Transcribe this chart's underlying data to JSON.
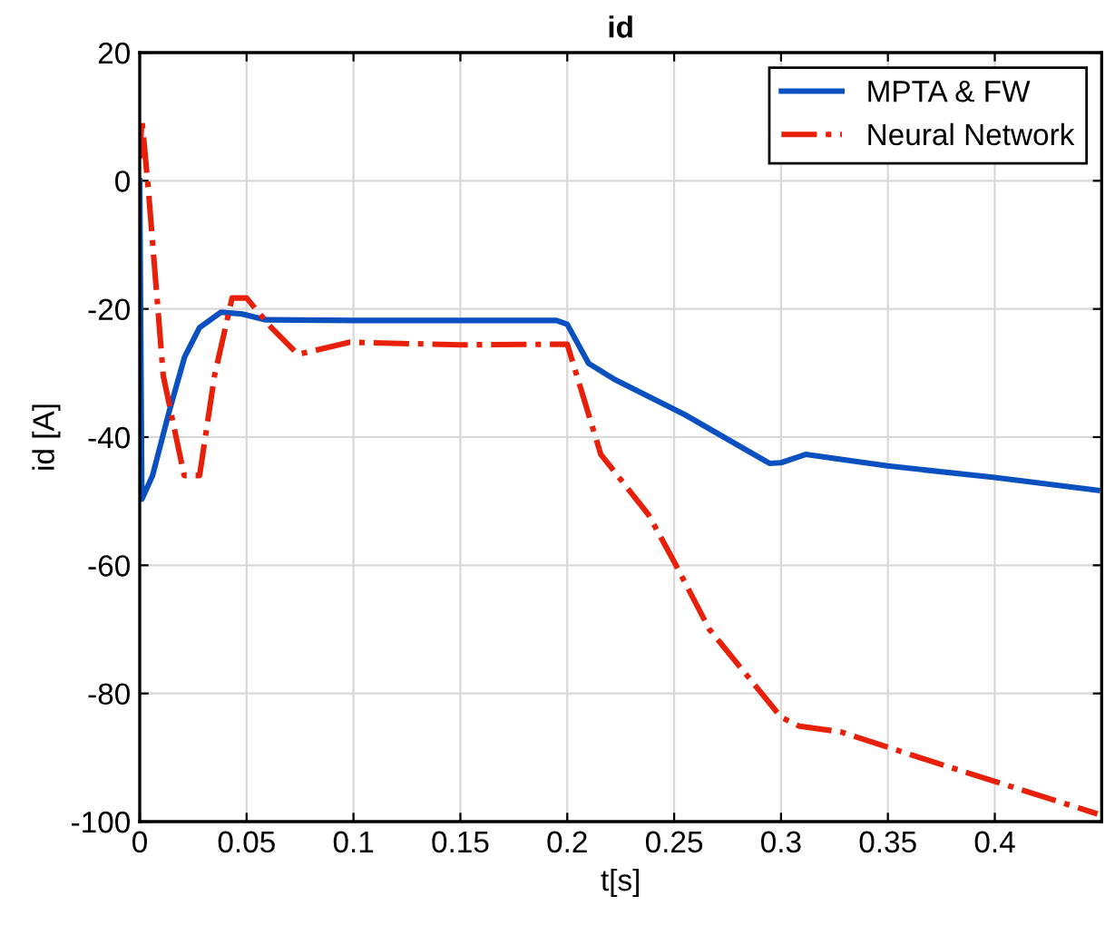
{
  "chart_data": {
    "type": "line",
    "title": "id",
    "xlabel": "t[s]",
    "ylabel": "id [A]",
    "xlim": [
      0,
      0.45
    ],
    "ylim": [
      -100,
      20
    ],
    "xticks": [
      0,
      0.05,
      0.1,
      0.15,
      0.2,
      0.25,
      0.3,
      0.35,
      0.4
    ],
    "yticks": [
      -100,
      -80,
      -60,
      -40,
      -20,
      0,
      20
    ],
    "grid": true,
    "legend": "top right",
    "series": [
      {
        "name": "MPTA & FW",
        "color": "#0a50c0",
        "line_style": "solid",
        "x": [
          0,
          0.001,
          0.006,
          0.0137,
          0.021,
          0.028,
          0.038,
          0.048,
          0.059,
          0.1,
          0.15,
          0.195,
          0.2,
          0.21,
          0.2216,
          0.255,
          0.2946,
          0.3,
          0.3115,
          0.35,
          0.4,
          0.448
        ],
        "values": [
          0,
          -49.7,
          -46,
          -36.1,
          -27.5,
          -22.9,
          -20.5,
          -20.8,
          -21.7,
          -21.8,
          -21.8,
          -21.8,
          -22.4,
          -28.5,
          -30.9,
          -36.5,
          -44.1,
          -44,
          -42.7,
          -44.5,
          -46.3,
          -48.3
        ]
      },
      {
        "name": "Neural Network",
        "color": "#e8200a",
        "line_style": "dashdot",
        "x": [
          0,
          0.001,
          0.004,
          0.011,
          0.0208,
          0.028,
          0.035,
          0.0432,
          0.05,
          0.0615,
          0.074,
          0.098,
          0.15,
          0.2,
          0.2157,
          0.238,
          0.2496,
          0.2665,
          0.3,
          0.3086,
          0.328,
          0.3676,
          0.448
        ],
        "values": [
          3.5,
          9.7,
          -1.2,
          -30.4,
          -46,
          -46,
          -30.4,
          -18.3,
          -18.3,
          -22.9,
          -27.1,
          -25.2,
          -25.6,
          -25.5,
          -42.7,
          -52.1,
          -59.2,
          -70,
          -83.7,
          -85.1,
          -86,
          -90.3,
          -98.8
        ]
      }
    ]
  }
}
